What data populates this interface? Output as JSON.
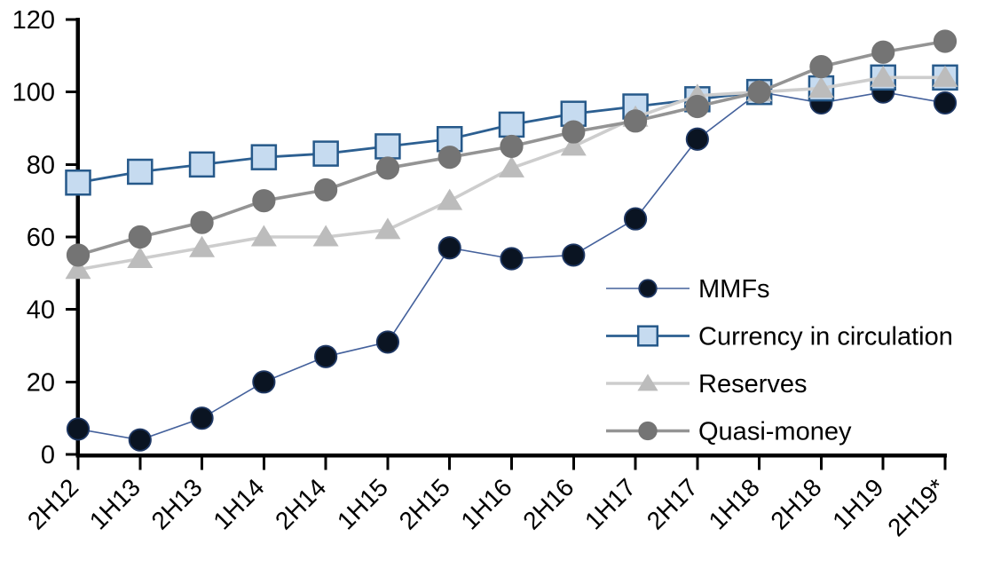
{
  "chart_data": {
    "type": "line",
    "title": "",
    "xlabel": "",
    "ylabel": "",
    "categories": [
      "2H12",
      "1H13",
      "2H13",
      "1H14",
      "2H14",
      "1H15",
      "2H15",
      "1H16",
      "2H16",
      "1H17",
      "2H17",
      "1H18",
      "2H18",
      "1H19",
      "2H19*"
    ],
    "series": [
      {
        "name": "MMFs",
        "marker": "circle",
        "marker_fill": "#0a1422",
        "marker_stroke": "#1f3864",
        "line_color": "#44619c",
        "line_width": 1.6,
        "values": [
          7,
          4,
          10,
          20,
          27,
          31,
          57,
          54,
          55,
          65,
          87,
          100,
          97,
          100,
          97
        ]
      },
      {
        "name": "Currency in circulation",
        "marker": "square",
        "marker_fill": "#c6dbf0",
        "marker_stroke": "#26598a",
        "line_color": "#2c5f91",
        "line_width": 2.8,
        "values": [
          75,
          78,
          80,
          82,
          83,
          85,
          87,
          91,
          94,
          96,
          98,
          100,
          101,
          104,
          104
        ]
      },
      {
        "name": "Reserves",
        "marker": "triangle",
        "marker_fill": "#bcbcbc",
        "marker_stroke": "#bcbcbc",
        "line_color": "#cdcdcd",
        "line_width": 3.6,
        "values": [
          51,
          54,
          57,
          60,
          60,
          62,
          70,
          79,
          85,
          93,
          99,
          100,
          101,
          104,
          104
        ]
      },
      {
        "name": "Quasi-money",
        "marker": "circle",
        "marker_fill": "#747474",
        "marker_stroke": "#747474",
        "line_color": "#949494",
        "line_width": 3.6,
        "values": [
          55,
          60,
          64,
          70,
          73,
          79,
          82,
          85,
          89,
          92,
          96,
          100,
          107,
          111,
          114
        ]
      }
    ],
    "ylim": [
      0,
      120
    ],
    "yticks": [
      0,
      20,
      40,
      60,
      80,
      100,
      120
    ],
    "grid": false,
    "legend_position": "middle-right",
    "axis_color": "#000000",
    "background": "#ffffff"
  }
}
